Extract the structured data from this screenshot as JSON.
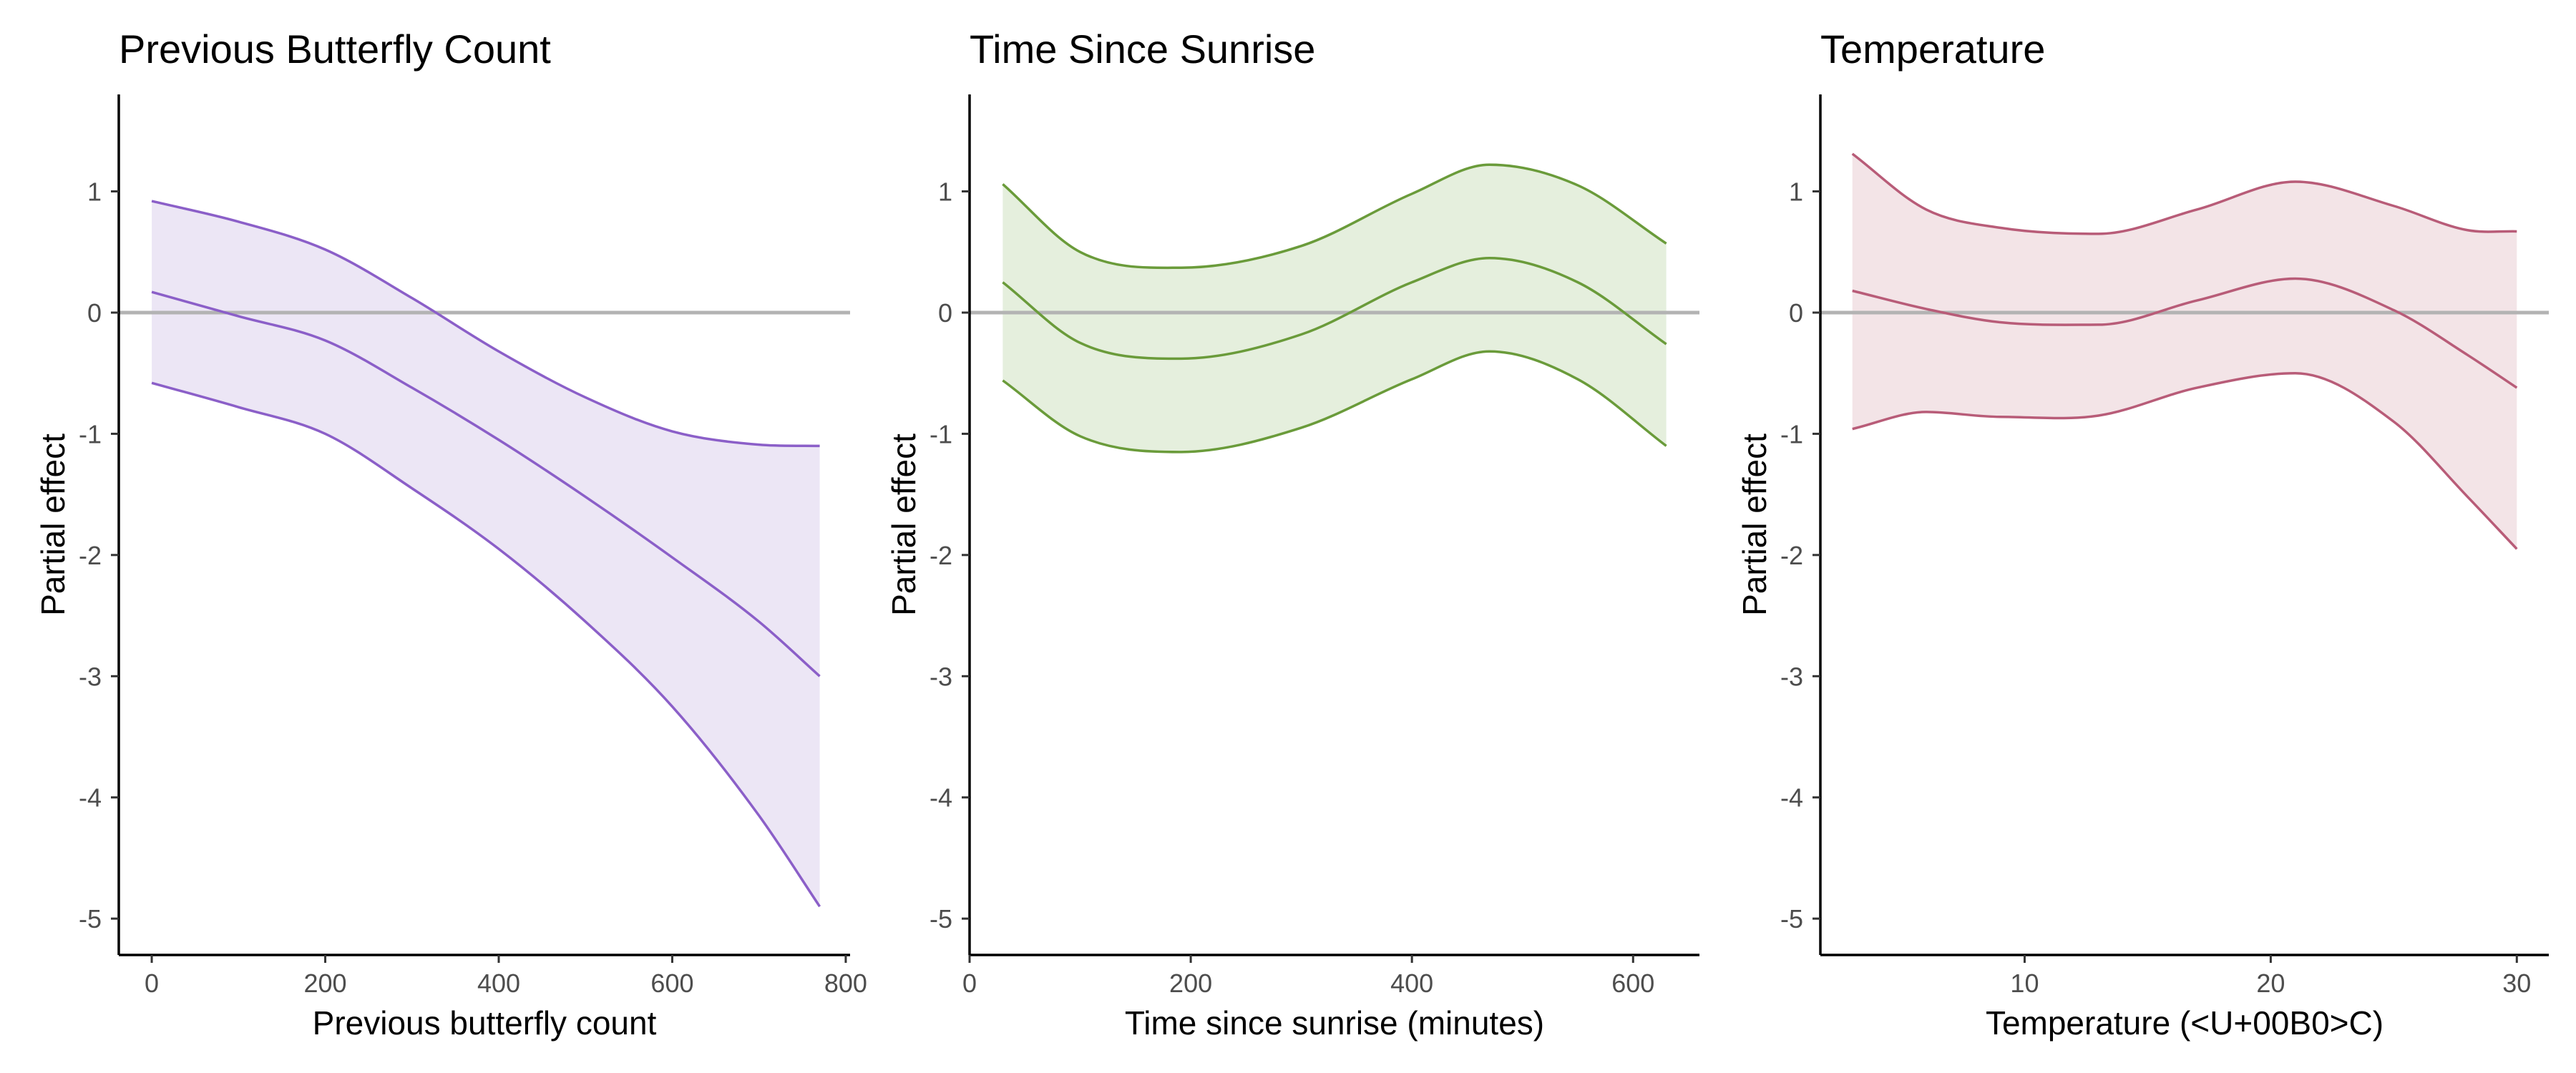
{
  "chart_data": [
    {
      "type": "line",
      "title": "Previous Butterfly Count",
      "xlabel": "Previous butterfly count",
      "ylabel": "Partial effect",
      "xlim": [
        -38,
        805
      ],
      "ylim": [
        -5.3,
        1.8
      ],
      "xticks": [
        0,
        200,
        400,
        600,
        800
      ],
      "yticks": [
        1,
        0,
        -1,
        -2,
        -3,
        -4,
        -5
      ],
      "reference_line_y": 0,
      "color": "#8b5fc8",
      "fill": "#ece6f5",
      "x": [
        0,
        100,
        200,
        300,
        400,
        500,
        600,
        700,
        770
      ],
      "series": [
        {
          "name": "upper",
          "values": [
            0.92,
            0.75,
            0.52,
            0.12,
            -0.32,
            -0.7,
            -0.98,
            -1.09,
            -1.1
          ]
        },
        {
          "name": "estimate",
          "values": [
            0.17,
            -0.03,
            -0.23,
            -0.62,
            -1.05,
            -1.52,
            -2.02,
            -2.55,
            -3.0
          ]
        },
        {
          "name": "lower",
          "values": [
            -0.58,
            -0.78,
            -1.0,
            -1.45,
            -1.95,
            -2.55,
            -3.25,
            -4.15,
            -4.9
          ]
        }
      ]
    },
    {
      "type": "line",
      "title": "Time Since Sunrise",
      "xlabel": "Time since sunrise (minutes)",
      "ylabel": "Partial effect",
      "xlim": [
        0,
        660
      ],
      "ylim": [
        -5.3,
        1.8
      ],
      "xticks": [
        0,
        200,
        400,
        600
      ],
      "yticks": [
        1,
        0,
        -1,
        -2,
        -3,
        -4,
        -5
      ],
      "reference_line_y": 0,
      "color": "#6a9b3a",
      "fill": "#e5efdd",
      "x": [
        30,
        100,
        190,
        300,
        400,
        470,
        550,
        630
      ],
      "series": [
        {
          "name": "upper",
          "values": [
            1.06,
            0.5,
            0.37,
            0.55,
            0.98,
            1.22,
            1.05,
            0.57
          ]
        },
        {
          "name": "estimate",
          "values": [
            0.25,
            -0.25,
            -0.38,
            -0.18,
            0.25,
            0.45,
            0.25,
            -0.26
          ]
        },
        {
          "name": "lower",
          "values": [
            -0.56,
            -1.02,
            -1.15,
            -0.95,
            -0.55,
            -0.32,
            -0.55,
            -1.1
          ]
        }
      ]
    },
    {
      "type": "line",
      "title": "Temperature",
      "xlabel": "Temperature (<U+00B0>C)",
      "ylabel": "Partial effect",
      "xlim": [
        1.7,
        31.3
      ],
      "ylim": [
        -5.3,
        1.8
      ],
      "xticks": [
        10,
        20,
        30
      ],
      "yticks": [
        1,
        0,
        -1,
        -2,
        -3,
        -4,
        -5
      ],
      "reference_line_y": 0,
      "color": "#b85c78",
      "fill": "#f3e4e7",
      "x": [
        3,
        6,
        9,
        13,
        17,
        21,
        25,
        28,
        30
      ],
      "series": [
        {
          "name": "upper",
          "values": [
            1.31,
            0.85,
            0.7,
            0.65,
            0.85,
            1.08,
            0.88,
            0.68,
            0.67
          ]
        },
        {
          "name": "estimate",
          "values": [
            0.18,
            0.03,
            -0.08,
            -0.1,
            0.1,
            0.28,
            0.02,
            -0.35,
            -0.62
          ]
        },
        {
          "name": "lower",
          "values": [
            -0.96,
            -0.82,
            -0.86,
            -0.85,
            -0.62,
            -0.5,
            -0.9,
            -1.52,
            -1.95
          ]
        }
      ]
    }
  ]
}
